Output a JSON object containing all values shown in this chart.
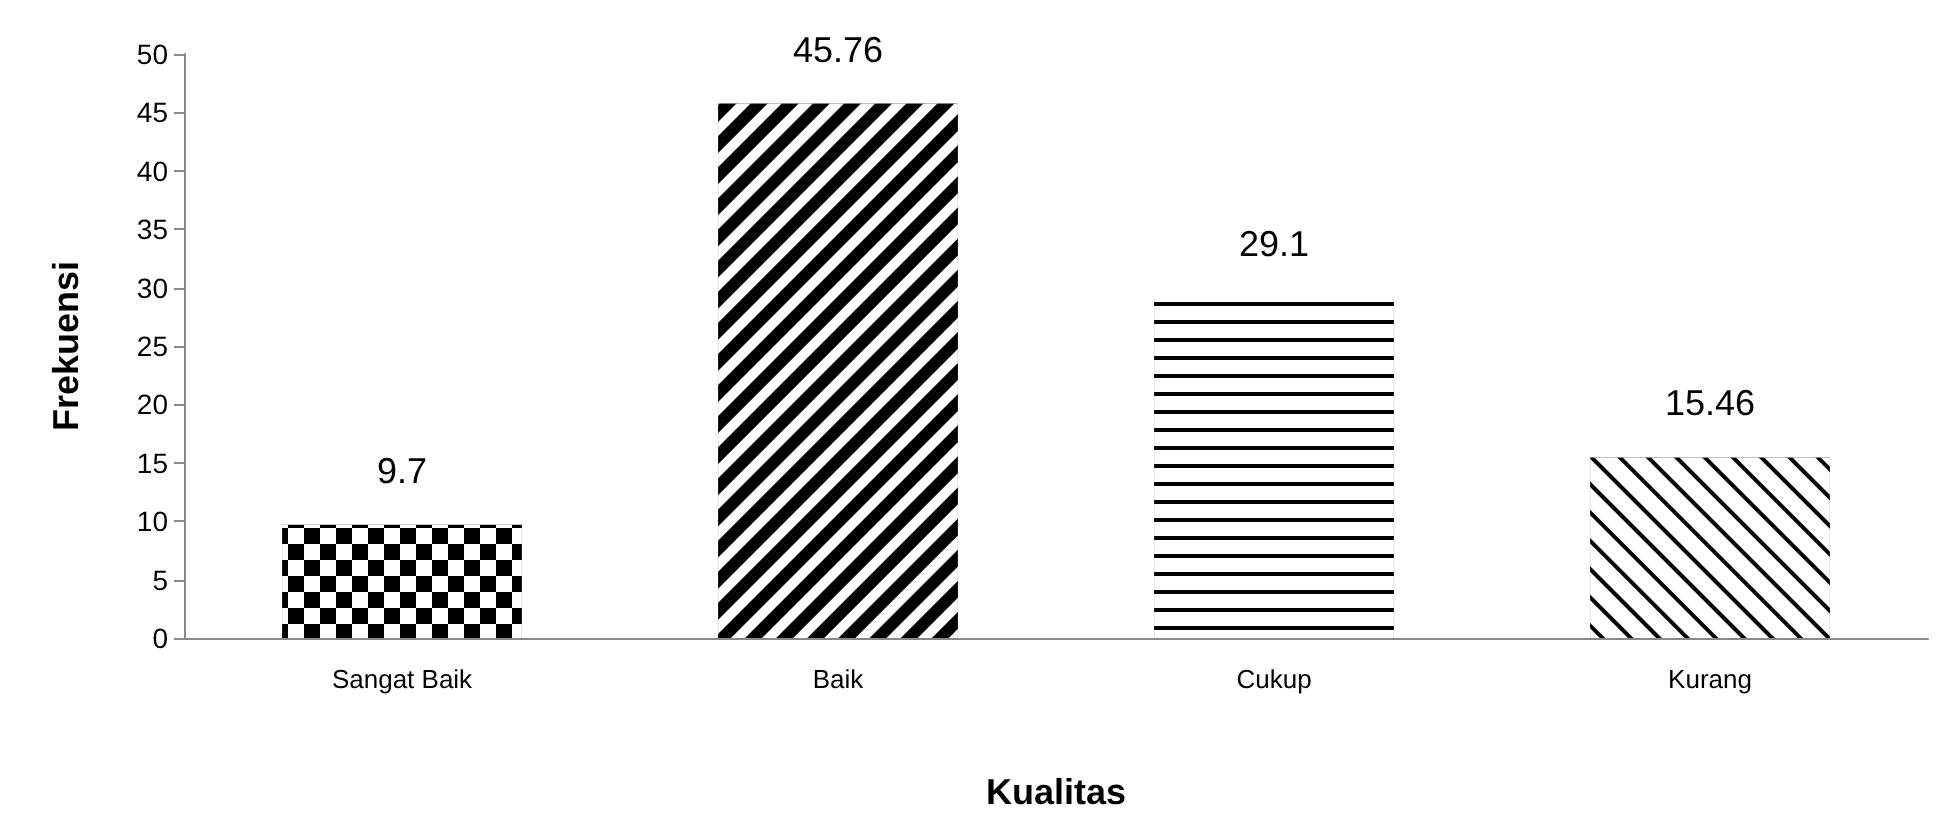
{
  "chart_data": {
    "type": "bar",
    "xlabel": "Kualitas",
    "ylabel": "Frekuensi",
    "categories": [
      "Sangat Baik",
      "Baik",
      "Cukup",
      "Kurang"
    ],
    "values": [
      9.7,
      45.76,
      29.1,
      15.46
    ],
    "colors": [
      "#000000",
      "#000000",
      "#000000",
      "#000000"
    ],
    "ylim": [
      0,
      50
    ],
    "yticks": [
      0,
      5,
      10,
      15,
      20,
      25,
      30,
      35,
      40,
      45,
      50
    ],
    "data_labels": true,
    "grid": false
  }
}
